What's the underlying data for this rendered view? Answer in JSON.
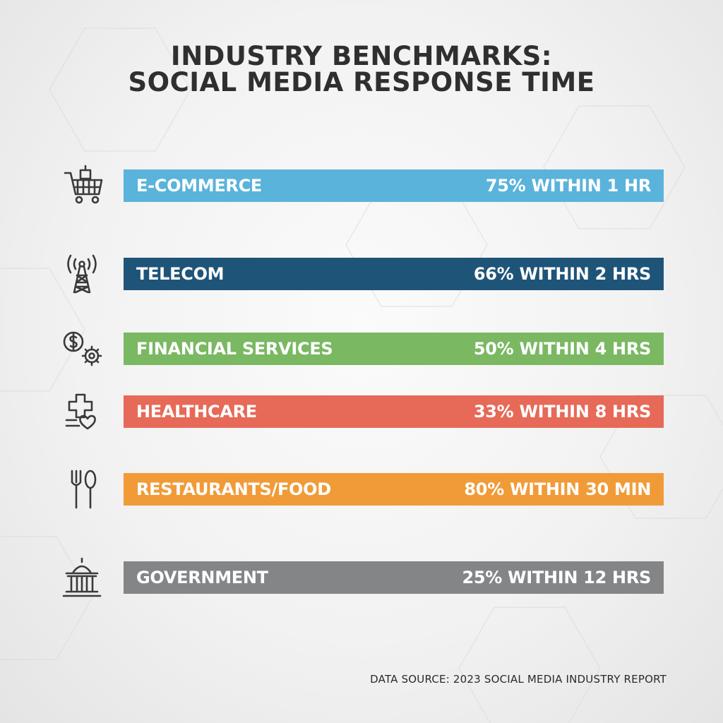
{
  "title": {
    "line1": "INDUSTRY BENCHMARKS:",
    "line2": "SOCIAL MEDIA RESPONSE TIME"
  },
  "chart_data": {
    "type": "bar",
    "orientation": "horizontal",
    "title": "INDUSTRY BENCHMARKS: SOCIAL MEDIA RESPONSE TIME",
    "categories": [
      "E-COMMERCE",
      "TELECOM",
      "FINANCIAL SERVICES",
      "HEALTHCARE",
      "RESTAURANTS/FOOD",
      "GOVERNMENT"
    ],
    "value_labels": [
      "75% WITHIN 1 HR",
      "66% WITHIN 2 HRS",
      "50% WITHIN 4 HRS",
      "33% WITHIN 8 HRS",
      "80% WITHIN 30 MIN",
      "25% WITHIN 12 HRS"
    ],
    "percent": [
      75,
      66,
      50,
      33,
      80,
      25
    ],
    "icons": [
      "shopping-cart-icon",
      "antenna-tower-icon",
      "dollar-gear-icon",
      "medical-cross-heart-icon",
      "fork-spoon-icon",
      "government-building-icon"
    ],
    "colors": [
      "#5ab3db",
      "#1f5479",
      "#7ab862",
      "#e76958",
      "#f19b38",
      "#838587"
    ],
    "xlabel": "",
    "ylabel": "",
    "legend": "none",
    "grid": false
  },
  "source": "DATA SOURCE: 2023 SOCIAL MEDIA INDUSTRY REPORT"
}
